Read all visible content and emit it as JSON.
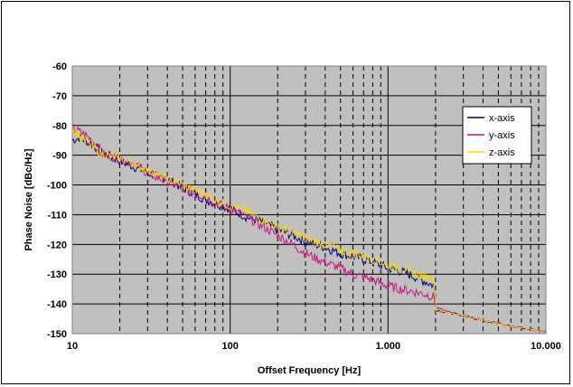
{
  "chart_data": {
    "type": "line",
    "xlabel": "Offset Frequency [Hz]",
    "ylabel": "Phase Noise [dBc/Hz]",
    "x_scale": "log",
    "xlim": [
      10,
      10000
    ],
    "ylim": [
      -150,
      -60
    ],
    "x_ticks": [
      10,
      100,
      1000,
      10000
    ],
    "x_tick_labels": [
      "10",
      "100",
      "1.000",
      "10.000"
    ],
    "y_ticks": [
      -60,
      -70,
      -80,
      -90,
      -100,
      -110,
      -120,
      -130,
      -140,
      -150
    ],
    "y_tick_labels": [
      "-60",
      "-70",
      "-80",
      "-90",
      "-100",
      "-110",
      "-120",
      "-130",
      "-140",
      "-150"
    ],
    "grid": true,
    "legend_position": "top-right",
    "plot_background": "#c0c0c0",
    "series": [
      {
        "name": "x-axis",
        "color": "#000080",
        "x": [
          10,
          11,
          12,
          13,
          14,
          15,
          17,
          20,
          25,
          30,
          40,
          50,
          60,
          70,
          80,
          100,
          130,
          150,
          200,
          250,
          300,
          400,
          500,
          600,
          700,
          800,
          900,
          1000,
          1200,
          1500,
          1800,
          1990,
          2000,
          2010,
          2200,
          2500,
          3000,
          4000,
          5000,
          6000,
          7000,
          8000,
          10000
        ],
        "y": [
          -85,
          -84,
          -85,
          -86,
          -87,
          -89,
          -90,
          -92,
          -94,
          -96,
          -98,
          -101,
          -103,
          -105,
          -106,
          -108,
          -111,
          -112,
          -115,
          -117,
          -119,
          -121,
          -123,
          -124,
          -125,
          -126,
          -127,
          -128,
          -129,
          -131,
          -133,
          -134,
          -142,
          -142,
          -142.5,
          -143,
          -144,
          -145.5,
          -146.5,
          -147.5,
          -148,
          -148.5,
          -149.5
        ]
      },
      {
        "name": "y-axis",
        "color": "#c71585",
        "x": [
          10,
          12,
          14,
          16,
          20,
          25,
          30,
          40,
          50,
          60,
          70,
          80,
          100,
          130,
          150,
          200,
          250,
          300,
          400,
          500,
          600,
          700,
          800,
          1000,
          1200,
          1500,
          1800,
          1990,
          2000,
          2200,
          2500,
          3000,
          4000,
          5000,
          6000,
          7000,
          8000,
          10000
        ],
        "y": [
          -81,
          -83,
          -86,
          -90,
          -91,
          -93,
          -96,
          -99,
          -101,
          -103,
          -104,
          -106,
          -108,
          -111,
          -113,
          -117,
          -120,
          -123,
          -126,
          -128,
          -130,
          -131,
          -132,
          -134,
          -135,
          -136,
          -137,
          -138,
          -141,
          -142,
          -143,
          -144,
          -145.5,
          -146.5,
          -147.5,
          -148,
          -148.5,
          -149.5
        ]
      },
      {
        "name": "z-axis",
        "color": "#ffd700",
        "x": [
          10,
          12,
          14,
          16,
          20,
          25,
          30,
          40,
          50,
          60,
          70,
          80,
          100,
          130,
          150,
          200,
          250,
          300,
          400,
          500,
          600,
          700,
          800,
          1000,
          1200,
          1500,
          1800,
          1990,
          2000,
          2200,
          2500,
          3000,
          4000,
          5000,
          6000,
          7000,
          8000,
          10000
        ],
        "y": [
          -81,
          -85,
          -88,
          -90,
          -91,
          -93,
          -95,
          -98,
          -100,
          -102,
          -103,
          -105,
          -107,
          -109,
          -111,
          -114,
          -116,
          -118,
          -120,
          -122,
          -123,
          -124,
          -125,
          -127,
          -128,
          -130,
          -131,
          -132,
          -143,
          -142.5,
          -143,
          -144,
          -145.5,
          -146.5,
          -147.5,
          -148,
          -148.5,
          -149.5
        ]
      }
    ]
  }
}
